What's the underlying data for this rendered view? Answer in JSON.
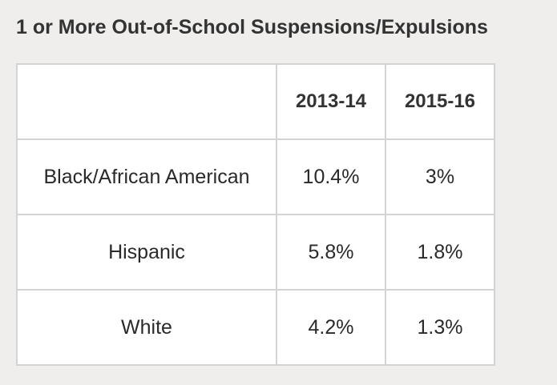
{
  "title": "1 or More Out-of-School Suspensions/Expulsions",
  "chart_data": {
    "type": "table",
    "title": "1 or More Out-of-School Suspensions/Expulsions",
    "columns": [
      "",
      "2013-14",
      "2015-16"
    ],
    "rows": [
      {
        "label": "Black/African American",
        "values": [
          "10.4%",
          "3%"
        ]
      },
      {
        "label": "Hispanic",
        "values": [
          "5.8%",
          "1.8%"
        ]
      },
      {
        "label": "White",
        "values": [
          "4.2%",
          "1.3%"
        ]
      }
    ]
  }
}
